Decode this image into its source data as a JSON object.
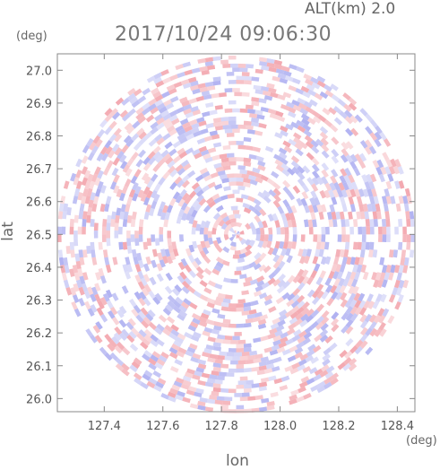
{
  "header": {
    "altitude_label": "ALT(km) 2.0",
    "timestamp": "2017/10/24 09:06:30"
  },
  "chart_data": {
    "type": "heatmap",
    "title": "2017/10/24 09:06:30",
    "subtitle": "ALT(km) 2.0",
    "xlabel": "lon",
    "ylabel": "lat",
    "x_unit": "(deg)",
    "y_unit": "(deg)",
    "xlim": [
      127.24,
      128.46
    ],
    "ylim": [
      25.96,
      27.05
    ],
    "x_ticks": [
      "127.4",
      "127.6",
      "127.8",
      "128.0",
      "128.2",
      "128.4"
    ],
    "y_ticks": [
      "26.0",
      "26.1",
      "26.2",
      "26.3",
      "26.4",
      "26.5",
      "26.6",
      "26.7",
      "26.8",
      "26.9",
      "27.0"
    ],
    "x_tick_values": [
      127.4,
      127.6,
      127.8,
      128.0,
      128.2,
      128.4
    ],
    "y_tick_values": [
      26.0,
      26.1,
      26.2,
      26.3,
      26.4,
      26.5,
      26.6,
      26.7,
      26.8,
      26.9,
      27.0
    ],
    "radar_center": {
      "lon": 127.85,
      "lat": 26.5
    },
    "radar_radius_deg_lat": 0.545,
    "colors": {
      "positive": "#f2a0a8",
      "negative": "#a8aaf0",
      "neutral": "#ffffff",
      "frame": "#888888",
      "tick_text": "#555555"
    },
    "grid": false,
    "legend": "none"
  }
}
